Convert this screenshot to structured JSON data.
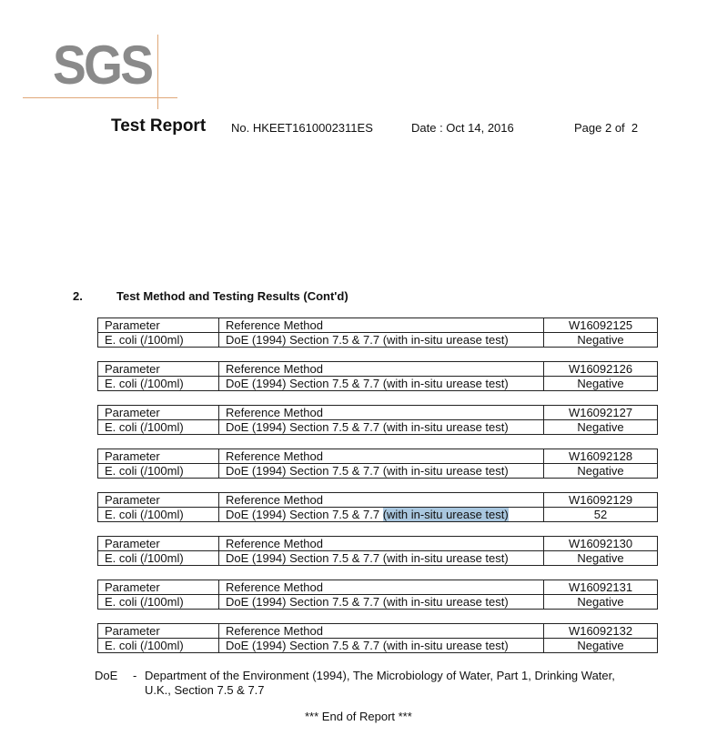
{
  "logo": "SGS",
  "header": {
    "title": "Test Report",
    "report_no": "No. HKEET1610002311ES",
    "date": "Date : Oct 14, 2016",
    "page": "Page 2 of  2"
  },
  "section": {
    "number": "2.",
    "title": "Test Method and Testing Results (Cont'd)"
  },
  "tables": [
    {
      "h1": "Parameter",
      "h2": "Reference Method",
      "sample": "W16092125",
      "param": "E. coli (/100ml)",
      "method": "DoE (1994) Section 7.5 & 7.7 ",
      "method_tail": "(with in-situ urease test)",
      "result": "Negative"
    },
    {
      "h1": "Parameter",
      "h2": "Reference Method",
      "sample": "W16092126",
      "param": "E. coli (/100ml)",
      "method": "DoE (1994) Section 7.5 & 7.7 ",
      "method_tail": "(with in-situ urease test)",
      "result": "Negative"
    },
    {
      "h1": "Parameter",
      "h2": "Reference Method",
      "sample": "W16092127",
      "param": "E. coli (/100ml)",
      "method": "DoE (1994) Section 7.5 & 7.7 ",
      "method_tail": "(with in-situ urease test)",
      "result": "Negative"
    },
    {
      "h1": "Parameter",
      "h2": "Reference Method",
      "sample": "W16092128",
      "param": "E. coli (/100ml)",
      "method": "DoE (1994) Section 7.5 & 7.7 ",
      "method_tail": "(with in-situ urease test)",
      "result": "Negative"
    },
    {
      "h1": "Parameter",
      "h2": "Reference Method",
      "sample": "W16092129",
      "param": "E. coli (/100ml)",
      "method": "DoE (1994) Section 7.5 & 7.7 ",
      "method_tail": "(with in-situ urease test)",
      "result": "52",
      "selected": true
    },
    {
      "h1": "Parameter",
      "h2": "Reference Method",
      "sample": "W16092130",
      "param": "E. coli (/100ml)",
      "method": "DoE (1994) Section 7.5 & 7.7 ",
      "method_tail": "(with in-situ urease test)",
      "result": "Negative"
    },
    {
      "h1": "Parameter",
      "h2": "Reference Method",
      "sample": "W16092131",
      "param": "E. coli (/100ml)",
      "method": "DoE (1994) Section 7.5 & 7.7 ",
      "method_tail": "(with in-situ urease test)",
      "result": "Negative"
    },
    {
      "h1": "Parameter",
      "h2": "Reference Method",
      "sample": "W16092132",
      "param": "E. coli (/100ml)",
      "method": "DoE (1994) Section 7.5 & 7.7 ",
      "method_tail": "(with in-situ urease test)",
      "result": "Negative"
    }
  ],
  "footnote": {
    "abbr": "DoE",
    "dash": "-",
    "line1": "Department of the Environment (1994), The Microbiology of Water, Part 1, Drinking Water,",
    "line2": "U.K., Section 7.5 & 7.7"
  },
  "end": "*** End of Report ***"
}
